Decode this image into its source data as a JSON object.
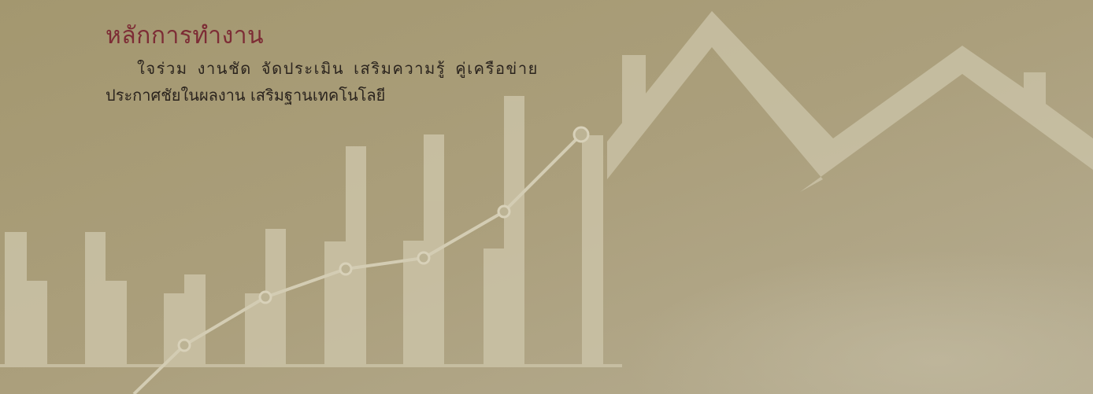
{
  "heading": "หลักการทำงาน",
  "body": {
    "line1": "ใจร่วม งานชัด จัดประเมิน เสริมความรู้ คู่เครือข่าย",
    "line2": "ประกาศชัยในผลงาน เสริมฐานเทคโนโลยี"
  },
  "colors": {
    "background": "#a89d79",
    "heading": "#7d2c35",
    "body_text": "#2b241e",
    "graphic": "#cbc3a7"
  },
  "icons": [
    "bar-chart-graphic",
    "trend-line-graphic",
    "house-roof-graphic"
  ]
}
